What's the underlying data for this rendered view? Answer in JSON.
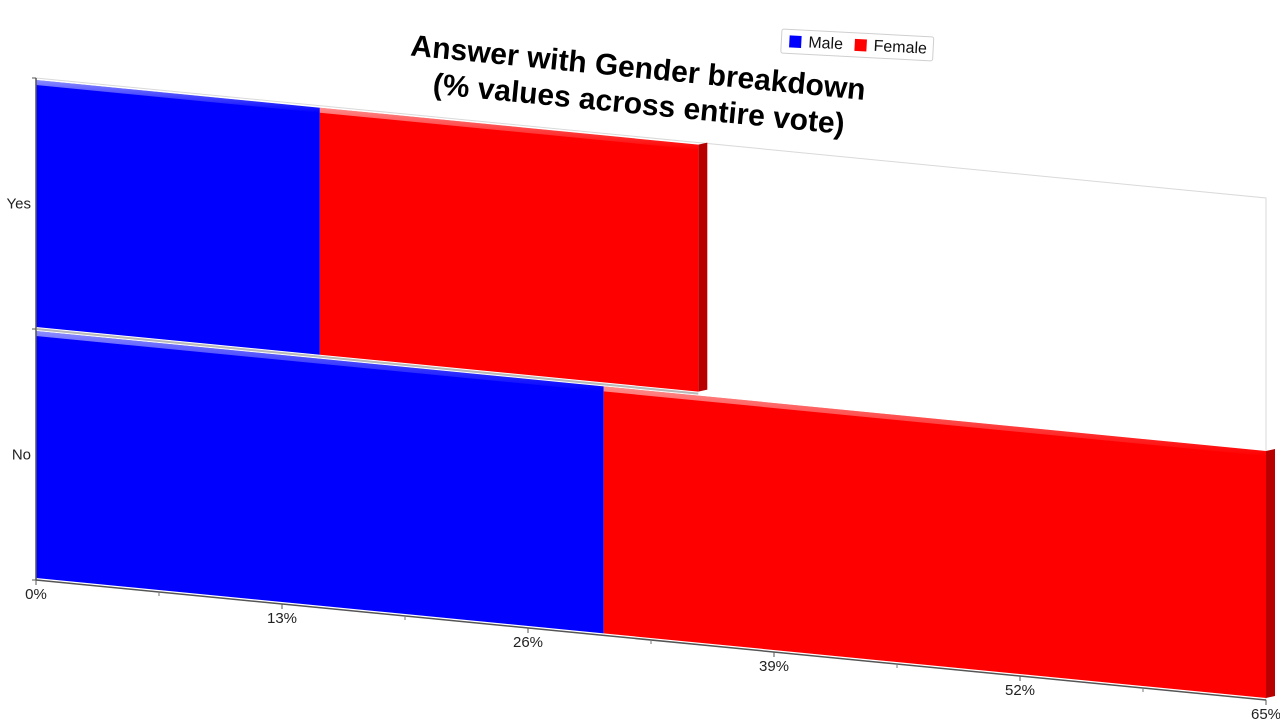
{
  "chart_data": {
    "type": "bar",
    "orientation": "horizontal",
    "stacked": true,
    "title": "Answer with Gender breakdown\n(% values across entire vote)",
    "categories": [
      "Yes",
      "No"
    ],
    "series": [
      {
        "name": "Male",
        "color": "#0000ff",
        "values": [
          15,
          30
        ]
      },
      {
        "name": "Female",
        "color": "#ff0000",
        "values": [
          20,
          35
        ]
      }
    ],
    "xlim": [
      0,
      65
    ],
    "x_ticks": [
      "0%",
      "13%",
      "26%",
      "39%",
      "52%",
      "65%"
    ],
    "legend_position": "top-right",
    "grid": false
  }
}
